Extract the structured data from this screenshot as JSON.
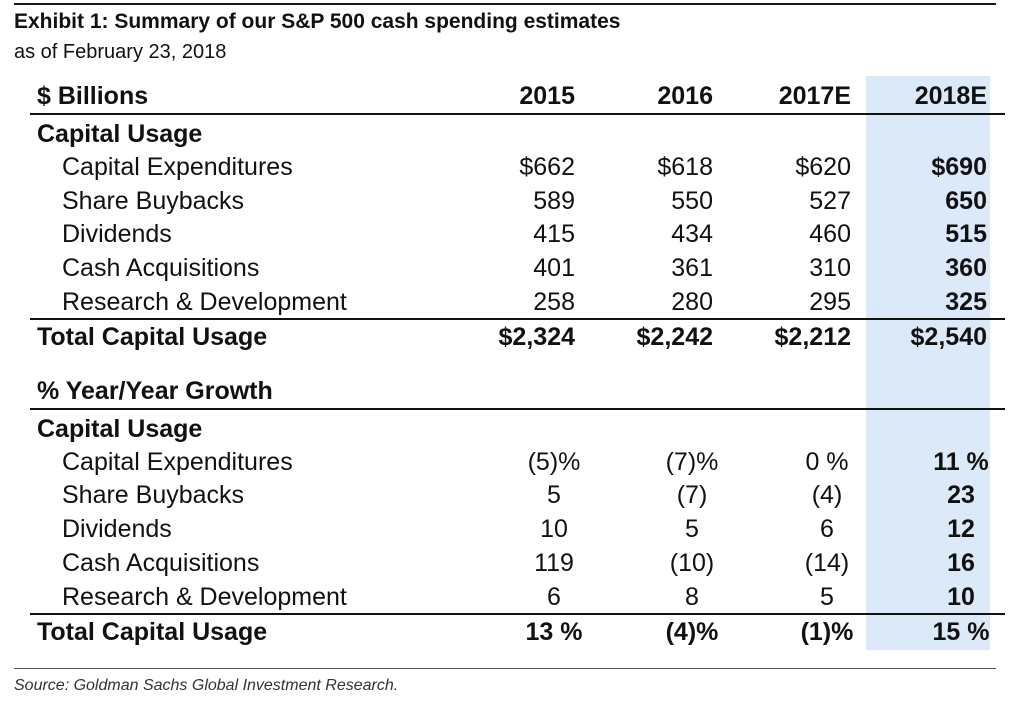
{
  "exhibit": {
    "title": "Exhibit 1: Summary of our S&P 500 cash spending estimates",
    "subtitle": "as of February 23, 2018",
    "source": "Source: Goldman Sachs Global Investment Research."
  },
  "header": {
    "units": "$ Billions",
    "years": [
      "2015",
      "2016",
      "2017E",
      "2018E"
    ]
  },
  "dollars": {
    "section_label": "Capital Usage",
    "rows": [
      {
        "label": "Capital Expenditures",
        "values": [
          "$662",
          "$618",
          "$620",
          "$690"
        ]
      },
      {
        "label": "Share Buybacks",
        "values": [
          "589",
          "550",
          "527",
          "650"
        ]
      },
      {
        "label": "Dividends",
        "values": [
          "415",
          "434",
          "460",
          "515"
        ]
      },
      {
        "label": "Cash Acquisitions",
        "values": [
          "401",
          "361",
          "310",
          "360"
        ]
      },
      {
        "label": "Research & Development",
        "values": [
          "258",
          "280",
          "295",
          "325"
        ]
      }
    ],
    "total": {
      "label": "Total Capital Usage",
      "values": [
        "$2,324",
        "$2,242",
        "$2,212",
        "$2,540"
      ]
    }
  },
  "growth": {
    "heading": "% Year/Year Growth",
    "section_label": "Capital Usage",
    "rows": [
      {
        "label": "Capital Expenditures",
        "values": [
          "(5)%",
          "(7)%",
          "0 %",
          "11 %"
        ]
      },
      {
        "label": "Share Buybacks",
        "values": [
          "5",
          "(7)",
          "(4)",
          "23"
        ]
      },
      {
        "label": "Dividends",
        "values": [
          "10",
          "5",
          "6",
          "12"
        ]
      },
      {
        "label": "Cash Acquisitions",
        "values": [
          "119",
          "(10)",
          "(14)",
          "16"
        ]
      },
      {
        "label": "Research & Development",
        "values": [
          "6",
          "8",
          "5",
          "10"
        ]
      }
    ],
    "total": {
      "label": "Total Capital Usage",
      "values": [
        "13 %",
        "(4)%",
        "(1)%",
        "15 %"
      ]
    }
  }
}
